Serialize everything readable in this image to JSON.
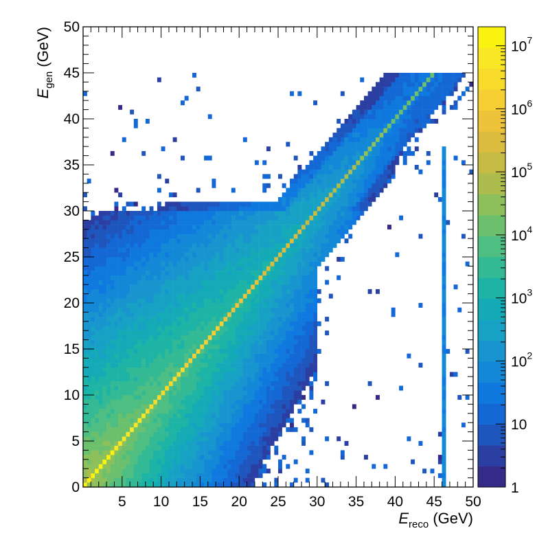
{
  "chart_data": {
    "type": "heatmap",
    "title": "",
    "xlabel": {
      "symbol": "E",
      "subscript": "reco",
      "unit": "(GeV)"
    },
    "ylabel": {
      "symbol": "E",
      "subscript": "gen",
      "unit": "(GeV)"
    },
    "xlim": [
      0,
      50
    ],
    "ylim": [
      0,
      50
    ],
    "x_ticks": [
      5,
      10,
      15,
      20,
      25,
      30,
      35,
      40,
      45,
      50
    ],
    "y_ticks": [
      0,
      5,
      10,
      15,
      20,
      25,
      30,
      35,
      40,
      45,
      50
    ],
    "bins": {
      "x": 100,
      "y": 100,
      "width": 0.5
    },
    "colorbar": {
      "scale": "log",
      "range": [
        1,
        20000000
      ],
      "labels": [
        {
          "value": 1,
          "base": "1",
          "exp": ""
        },
        {
          "value": 10,
          "base": "10",
          "exp": ""
        },
        {
          "value": 100,
          "base": "10",
          "exp": "2"
        },
        {
          "value": 1000,
          "base": "10",
          "exp": "3"
        },
        {
          "value": 10000,
          "base": "10",
          "exp": "4"
        },
        {
          "value": 100000,
          "base": "10",
          "exp": "5"
        },
        {
          "value": 1000000,
          "base": "10",
          "exp": "6"
        },
        {
          "value": 10000000,
          "base": "10",
          "exp": "7"
        }
      ],
      "palette": [
        "#352a87",
        "#2b3fa2",
        "#1f56be",
        "#1468d6",
        "#0f79df",
        "#1388d6",
        "#1895cf",
        "#17a1c4",
        "#14abb6",
        "#1db4a6",
        "#33ba95",
        "#4ebe82",
        "#6cc06d",
        "#8dc05a",
        "#acbd4d",
        "#c6bb44",
        "#dcbc3f",
        "#edc33a",
        "#f6cf34",
        "#f9db2c",
        "#f9e725",
        "#f9f30f"
      ]
    },
    "distribution": {
      "diagonal_peak_counts": [
        20000000,
        8000000,
        3000000,
        1500000,
        700000,
        300000,
        150000,
        50000,
        10000
      ],
      "diagonal_peak_at_gev": [
        0,
        5,
        10,
        15,
        20,
        25,
        30,
        35,
        42
      ],
      "cutoff_below_diagonal_gev": 30,
      "max_egen_gev": 45,
      "edge_column_gev": 46
    }
  }
}
